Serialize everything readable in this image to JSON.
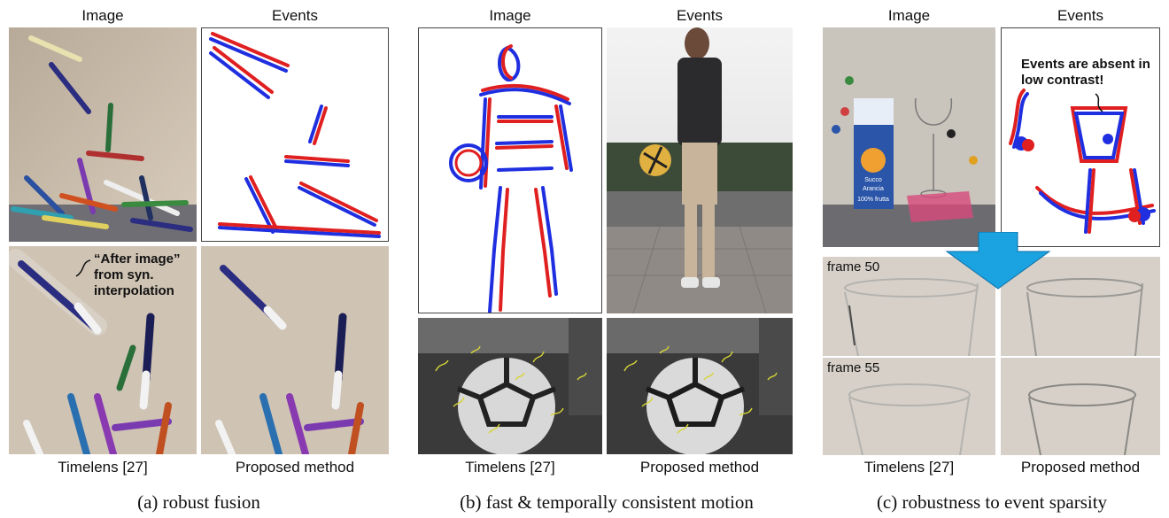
{
  "panels": {
    "a": {
      "header_left": "Image",
      "header_right": "Events",
      "footer_left": "Timelens [27]",
      "footer_right": "Proposed method",
      "note_lines": [
        "“After image”",
        "from syn.",
        "interpolation"
      ],
      "caption": "(a) robust fusion"
    },
    "b": {
      "header_left": "Image",
      "header_right": "Events",
      "footer_left": "Timelens [27]",
      "footer_right": "Proposed method",
      "caption": "(b) fast & temporally consistent motion"
    },
    "c": {
      "header_left": "Image",
      "header_right": "Events",
      "footer_left": "Timelens [27]",
      "footer_right": "Proposed method",
      "note_lines": [
        "Events are absent in",
        "low contrast!"
      ],
      "frame_labels": [
        "frame 50",
        "frame 55"
      ],
      "carton_lines": [
        "Succo",
        "Arancia",
        "100% frutta"
      ],
      "caption": "(c) robustness to event sparsity"
    }
  },
  "colors": {
    "event_positive": "#e02020",
    "event_negative": "#1f2fe0",
    "arrow": "#1aa3e0"
  }
}
